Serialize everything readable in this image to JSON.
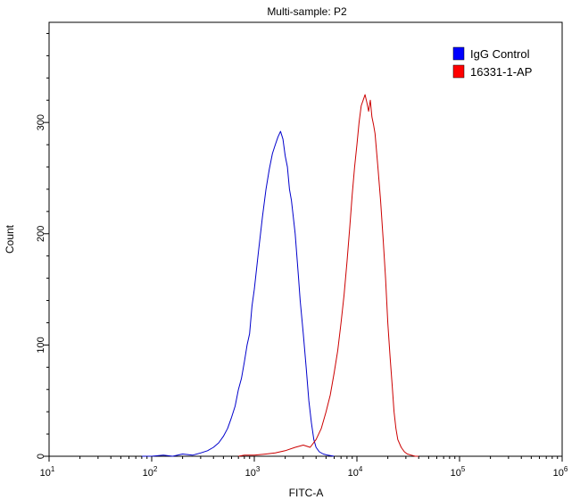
{
  "chart_data": {
    "type": "line",
    "title": "Multi-sample: P2",
    "xlabel": "FITC-A",
    "ylabel": "Count",
    "x_scale": "log",
    "xlim": [
      10,
      1000000
    ],
    "ylim": [
      0,
      390
    ],
    "x_ticks": [
      {
        "value": 10,
        "base": "10",
        "exp": "1"
      },
      {
        "value": 100,
        "base": "10",
        "exp": "2"
      },
      {
        "value": 1000,
        "base": "10",
        "exp": "3"
      },
      {
        "value": 10000,
        "base": "10",
        "exp": "4"
      },
      {
        "value": 100000,
        "base": "10",
        "exp": "5"
      },
      {
        "value": 1000000,
        "base": "10",
        "exp": "6"
      }
    ],
    "y_ticks": [
      0,
      100,
      200,
      300
    ],
    "legend_position": "top-right",
    "grid": false,
    "series": [
      {
        "name": "IgG Control",
        "color": "#0000cc",
        "legend_color": "#0000ff",
        "x": [
          80,
          100,
          130,
          160,
          200,
          250,
          300,
          350,
          400,
          450,
          500,
          550,
          600,
          650,
          700,
          750,
          800,
          850,
          900,
          950,
          1000,
          1100,
          1200,
          1300,
          1400,
          1500,
          1600,
          1700,
          1800,
          1900,
          2000,
          2100,
          2200,
          2300,
          2400,
          2500,
          2600,
          2700,
          2800,
          3000,
          3200,
          3400,
          3600,
          3800,
          4000,
          4300,
          4700,
          5200,
          6000
        ],
        "y": [
          0,
          0,
          1,
          0,
          2,
          1,
          3,
          5,
          8,
          12,
          18,
          25,
          35,
          45,
          60,
          70,
          85,
          100,
          110,
          135,
          150,
          185,
          215,
          240,
          258,
          272,
          280,
          287,
          292,
          285,
          270,
          260,
          240,
          230,
          215,
          200,
          180,
          160,
          140,
          110,
          80,
          50,
          30,
          15,
          8,
          4,
          2,
          1,
          0
        ]
      },
      {
        "name": "16331-1-AP",
        "color": "#cc0000",
        "legend_color": "#ff0000",
        "x": [
          700,
          800,
          1000,
          1300,
          1600,
          2000,
          2500,
          3000,
          3500,
          4000,
          4500,
          5000,
          5500,
          6000,
          6500,
          7000,
          7500,
          8000,
          8500,
          9000,
          9500,
          10000,
          10500,
          11000,
          11500,
          12000,
          12500,
          13000,
          13500,
          14000,
          14500,
          15000,
          16000,
          17000,
          18000,
          19000,
          20000,
          21000,
          22000,
          23000,
          24000,
          25000,
          27000,
          29000,
          31000,
          34000,
          37000,
          40000
        ],
        "y": [
          0,
          1,
          1,
          2,
          3,
          5,
          8,
          10,
          8,
          15,
          25,
          40,
          55,
          75,
          95,
          120,
          145,
          175,
          205,
          235,
          260,
          280,
          300,
          315,
          320,
          325,
          318,
          310,
          320,
          305,
          298,
          290,
          260,
          230,
          195,
          160,
          120,
          90,
          65,
          40,
          25,
          15,
          8,
          4,
          2,
          1,
          0,
          0
        ]
      }
    ]
  }
}
